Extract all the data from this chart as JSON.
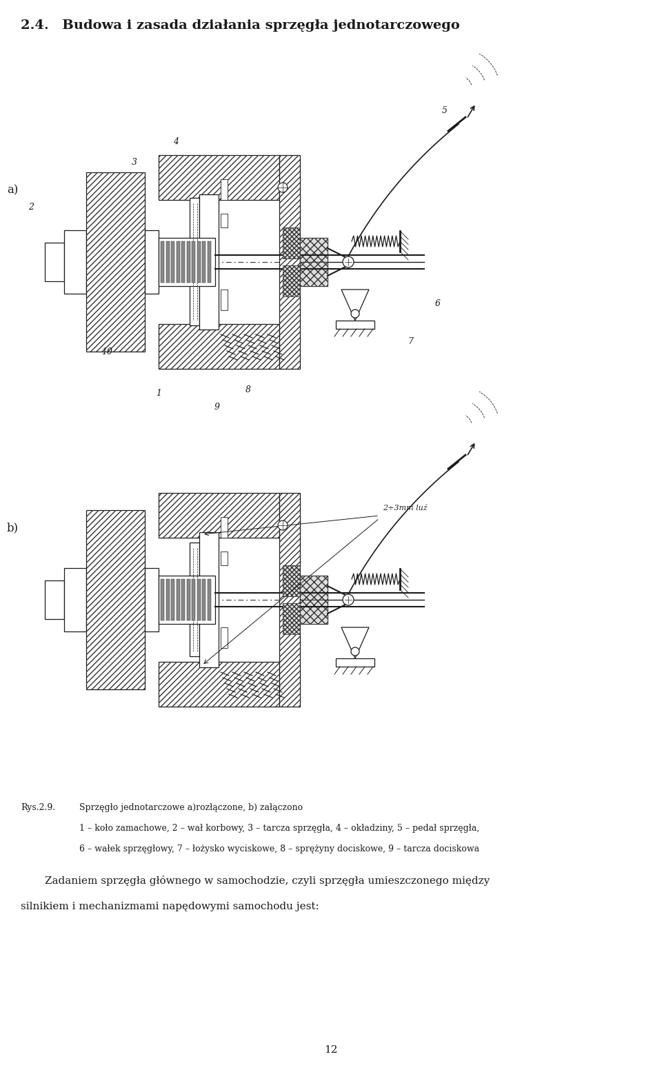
{
  "title": "2.4. Budowa i zasada działania sprzęgła jednotarczowego",
  "title_fontsize": 14,
  "title_bold": true,
  "label_a": "a)",
  "label_b": "b)",
  "caption_label": "Rys.2.9.",
  "caption_text_line1": "Sprzęgło jednotarczowe a)rozłączone, b) załączono",
  "caption_text_line2": "1 – koło zamachowe, 2 – wał korbowy, 3 – tarcza sprzęgła, 4 – okładziny, 5 – pedał sprzęgła,",
  "caption_text_line3": "6 – wałek sprzęgłowy, 7 – łożysko wyciskowe, 8 – sprężyny dociskowe, 9 – tarcza dociskowa",
  "paragraph_line1": "Zadaniem sprzęgła głównego w samochodzie, czyli sprzęgła umieszczonego między",
  "paragraph_line2": "silnikiem i mechanizmami napędowymi samochodu jest:",
  "page_number": "12",
  "bg_color": "#ffffff",
  "line_color": "#1a1a1a",
  "hatch_color": "#333333",
  "font_family": "DejaVu Serif",
  "caption_fontsize": 9,
  "paragraph_fontsize": 11,
  "lw": 0.9
}
